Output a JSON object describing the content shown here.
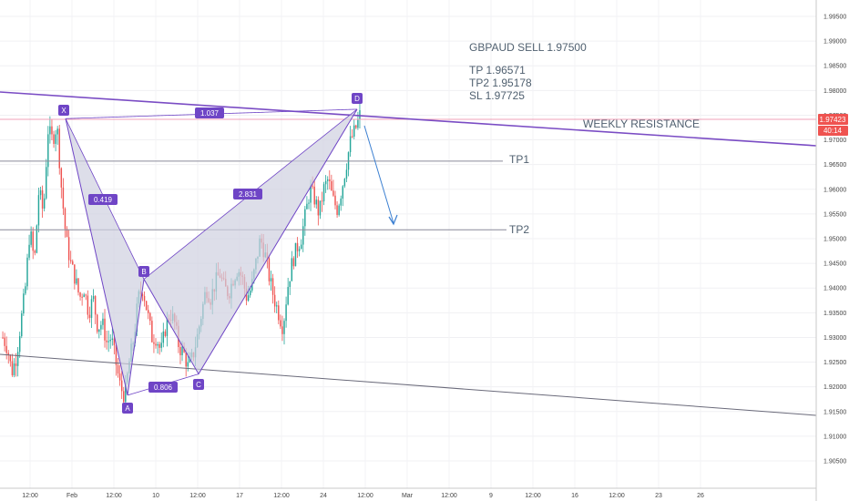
{
  "chart_data": {
    "type": "line",
    "title": "",
    "xlabel": "",
    "ylabel": "",
    "ylim": [
      1.903,
      1.997
    ],
    "colors": {
      "pattern": "#6f45c6",
      "pattern_fill": "#cfd0e0",
      "bull": "#26a69a",
      "bear": "#ef5350",
      "resistance_line": "#7a4cc4",
      "price_line": "#f0a0b8",
      "price_tag": "#ef5350",
      "arrow": "#3b7fd1"
    },
    "y_ticks": [
      "1.99500",
      "1.99000",
      "1.98500",
      "1.98000",
      "1.97500",
      "1.97000",
      "1.96500",
      "1.96000",
      "1.95500",
      "1.95000",
      "1.94500",
      "1.94000",
      "1.93500",
      "1.93000",
      "1.92500",
      "1.92000",
      "1.91500",
      "1.91000",
      "1.90500"
    ],
    "x_ticks": [
      "12:00",
      "Feb",
      "12:00",
      "10",
      "12:00",
      "17",
      "12:00",
      "24",
      "12:00",
      "Mar",
      "12:00",
      "9",
      "12:00",
      "16",
      "12:00",
      "23",
      "26"
    ],
    "price_tag": "1.97423",
    "countdown": "40:14",
    "annotations": {
      "heading": "GBPAUD SELL 1.97500",
      "tp": "TP 1.96571",
      "tp2": "TP2 1.95178",
      "sl": "SL 1.97725"
    },
    "levels": [
      {
        "label": "TP1",
        "price": 1.9657
      },
      {
        "label": "TP2",
        "price": 1.9518
      }
    ],
    "resistance_label": "WEEKLY RESISTANCE",
    "pattern": {
      "points": [
        {
          "label": "X",
          "price": 1.9743
        },
        {
          "label": "A",
          "price": 1.9183
        },
        {
          "label": "B",
          "price": 1.9418
        },
        {
          "label": "C",
          "price": 1.9226
        },
        {
          "label": "D",
          "price": 1.9762
        }
      ],
      "ratios": {
        "xb": "0.419",
        "ac": "0.806",
        "bd": "2.831",
        "xd": "1.037"
      }
    },
    "price_path": [
      [
        1.93,
        1.928
      ],
      [
        1.923,
        1.926
      ],
      [
        1.933,
        1.94
      ],
      [
        1.952,
        1.945
      ],
      [
        1.96,
        1.955
      ],
      [
        1.972,
        1.97
      ],
      [
        1.973,
        1.96
      ],
      [
        1.95,
        1.945
      ],
      [
        1.942,
        1.938
      ],
      [
        1.94,
        1.935
      ],
      [
        1.938,
        1.932
      ],
      [
        1.933,
        1.929
      ],
      [
        1.93,
        1.925
      ],
      [
        1.92,
        1.918
      ],
      [
        1.925,
        1.93
      ],
      [
        1.938,
        1.94
      ],
      [
        1.935,
        1.93
      ],
      [
        1.93,
        1.927
      ],
      [
        1.932,
        1.935
      ],
      [
        1.933,
        1.928
      ],
      [
        1.927,
        1.924
      ],
      [
        1.926,
        1.93
      ],
      [
        1.935,
        1.94
      ],
      [
        1.938,
        1.941
      ],
      [
        1.943,
        1.94
      ],
      [
        1.939,
        1.942
      ],
      [
        1.944,
        1.942
      ],
      [
        1.938,
        1.94
      ],
      [
        1.945,
        1.95
      ],
      [
        1.947,
        1.942
      ],
      [
        1.938,
        1.935
      ],
      [
        1.932,
        1.94
      ],
      [
        1.945,
        1.948
      ],
      [
        1.95,
        1.955
      ],
      [
        1.96,
        1.958
      ],
      [
        1.955,
        1.96
      ],
      [
        1.962,
        1.958
      ],
      [
        1.956,
        1.96
      ],
      [
        1.965,
        1.97
      ],
      [
        1.972,
        1.975
      ]
    ]
  }
}
